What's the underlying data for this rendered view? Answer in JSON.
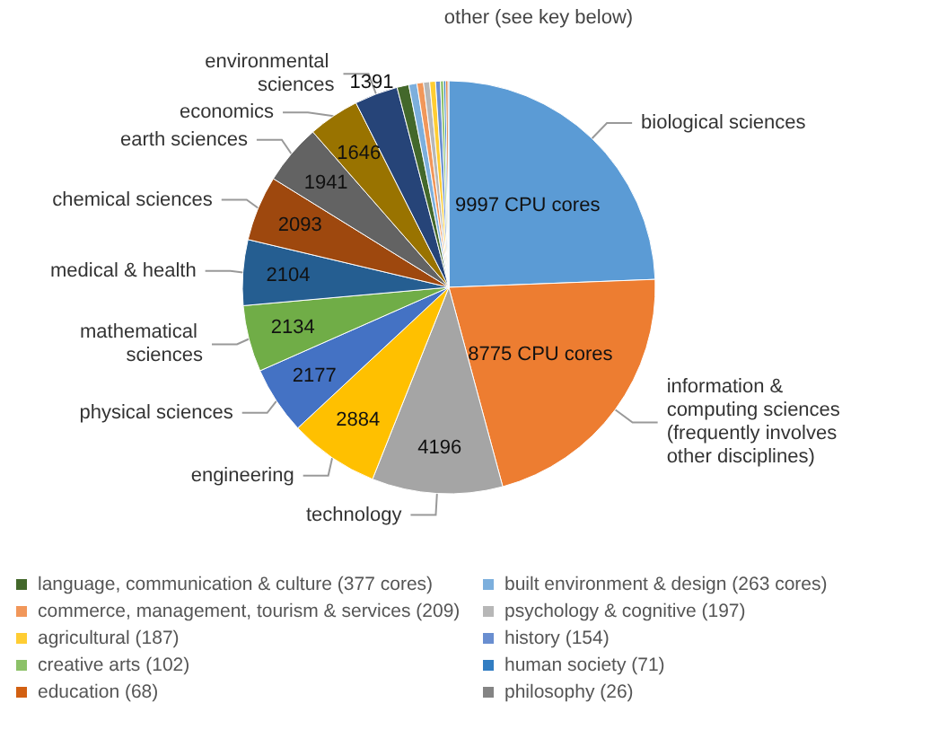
{
  "chart_data": {
    "type": "pie",
    "categories": [
      "biological sciences",
      "information & computing sciences (frequently involves other disciplines)",
      "technology",
      "engineering",
      "physical sciences",
      "mathematical sciences",
      "medical & health",
      "chemical sciences",
      "earth sciences",
      "economics",
      "environmental sciences",
      "language, communication & culture (377 cores)",
      "built environment & design (263 cores)",
      "commerce, management, tourism & services (209)",
      "psychology & cognitive (197)",
      "agricultural (187)",
      "history (154)",
      "creative arts (102)",
      "human society (71)",
      "education (68)",
      "philosophy (26)"
    ],
    "values": [
      9997,
      8775,
      4196,
      2884,
      2177,
      2134,
      2104,
      2093,
      1941,
      1646,
      1391,
      377,
      263,
      209,
      197,
      187,
      154,
      102,
      71,
      68,
      26
    ],
    "value_labels": [
      "9997 CPU cores",
      "8775 CPU cores",
      "4196",
      "2884",
      "2177",
      "2134",
      "2104",
      "2093",
      "1941",
      "1646",
      "1391",
      null,
      null,
      null,
      null,
      null,
      null,
      null,
      null,
      null,
      null
    ],
    "colors": [
      "#5b9bd5",
      "#ed7d31",
      "#a5a5a5",
      "#ffc000",
      "#4472c4",
      "#70ad47",
      "#255e91",
      "#9e480e",
      "#636363",
      "#997300",
      "#264478",
      "#43682b",
      "#7cafdd",
      "#f1975a",
      "#b7b7b7",
      "#ffcd33",
      "#698ed0",
      "#8cc168",
      "#327dc2",
      "#d26012",
      "#848484"
    ],
    "annotations": [
      "other (see key below)"
    ],
    "legend": "bottom"
  }
}
